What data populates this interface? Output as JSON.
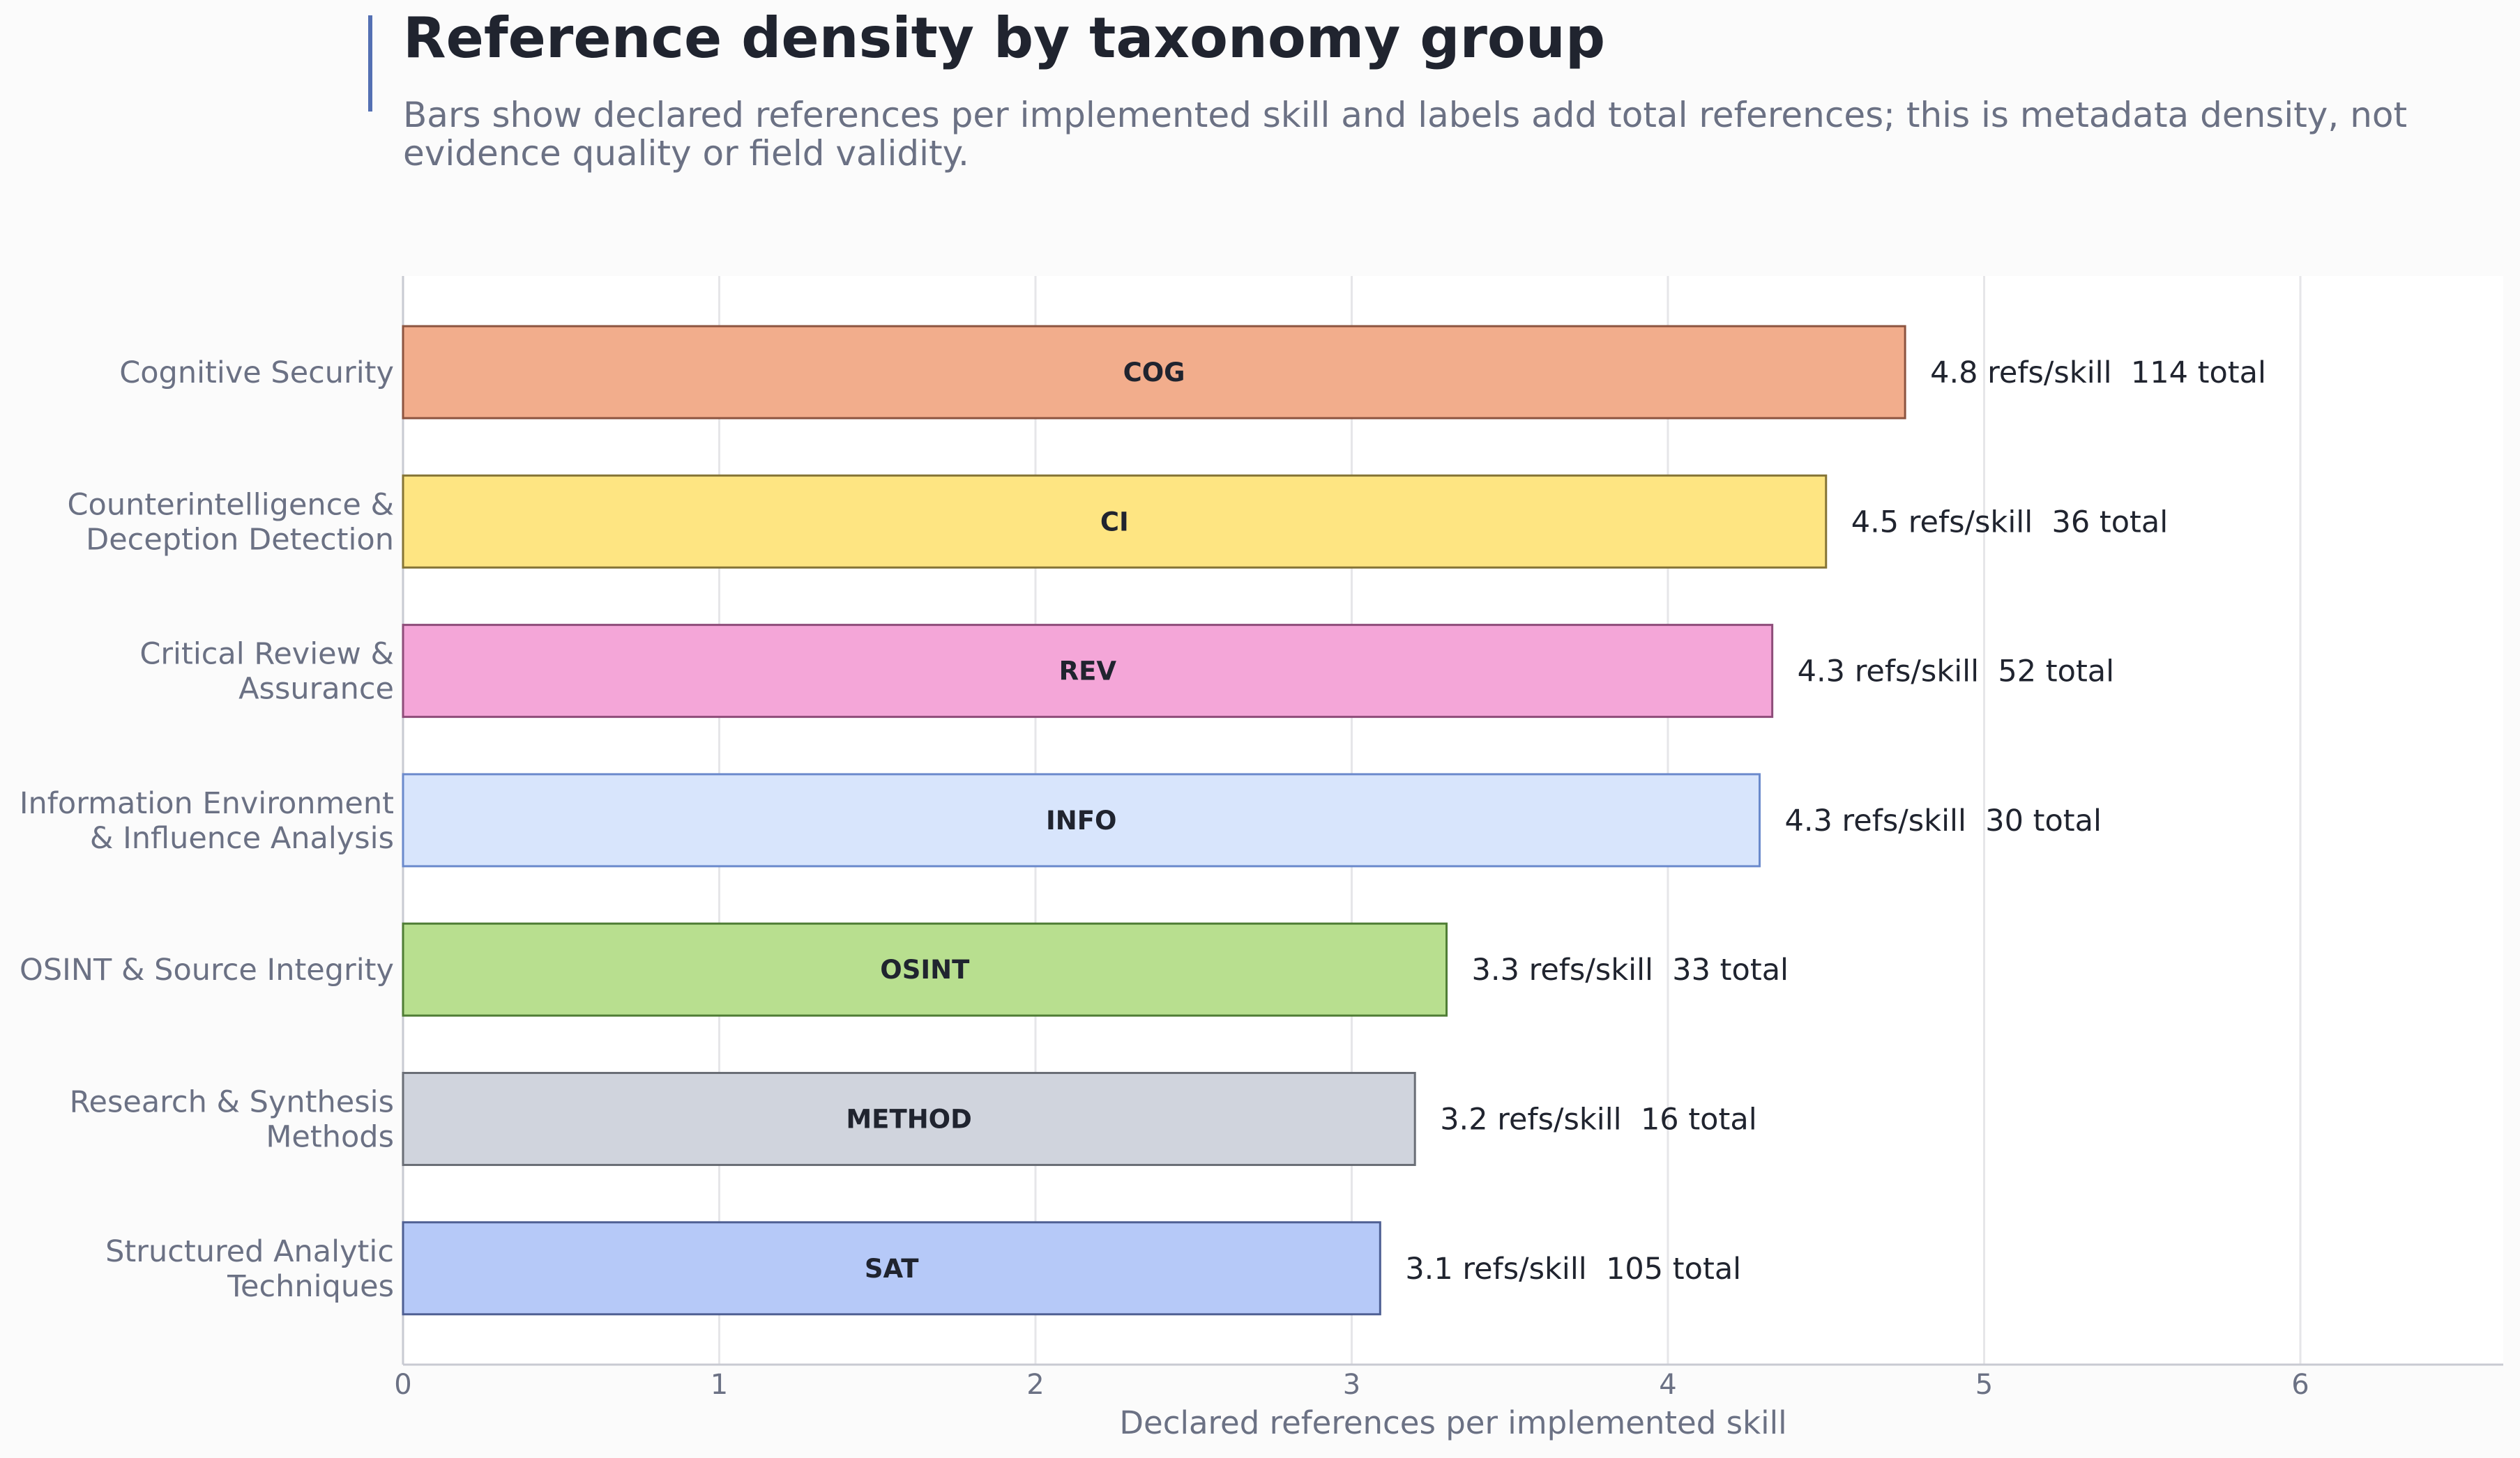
{
  "chart_data": {
    "type": "bar",
    "orientation": "horizontal",
    "title": "Reference density by taxonomy group",
    "subtitle": [
      "Bars show declared references per implemented skill and labels add total references; this is metadata density, not",
      "evidence quality or field validity."
    ],
    "xlabel": "Declared references per implemented skill",
    "ylabel": "",
    "xlim": [
      0,
      6.65
    ],
    "xticks": [
      0,
      1,
      2,
      3,
      4,
      5,
      6
    ],
    "grid": true,
    "unit_suffix": "refs/skill",
    "total_suffix": "total",
    "categories": [
      {
        "name": [
          "Cognitive Security"
        ],
        "code": "COG",
        "value": 4.75,
        "value_label": "4.8",
        "total": 114,
        "color": "#f2ad8c",
        "edge": "#8c5440"
      },
      {
        "name": [
          "Counterintelligence &",
          "Deception Detection"
        ],
        "code": "CI",
        "value": 4.5,
        "value_label": "4.5",
        "total": 36,
        "color": "#fee582",
        "edge": "#857436"
      },
      {
        "name": [
          "Critical Review &",
          "Assurance"
        ],
        "code": "REV",
        "value": 4.33,
        "value_label": "4.3",
        "total": 52,
        "color": "#f4a6d8",
        "edge": "#8e4d7a"
      },
      {
        "name": [
          "Information Environment",
          "& Influence Analysis"
        ],
        "code": "INFO",
        "value": 4.29,
        "value_label": "4.3",
        "total": 30,
        "color": "#d8e5fc",
        "edge": "#6b8acc"
      },
      {
        "name": [
          "OSINT & Source Integrity"
        ],
        "code": "OSINT",
        "value": 3.3,
        "value_label": "3.3",
        "total": 33,
        "color": "#b8df8f",
        "edge": "#4f7d35"
      },
      {
        "name": [
          "Research & Synthesis",
          "Methods"
        ],
        "code": "METHOD",
        "value": 3.2,
        "value_label": "3.2",
        "total": 16,
        "color": "#d0d4dd",
        "edge": "#6a6e76"
      },
      {
        "name": [
          "Structured Analytic",
          "Techniques"
        ],
        "code": "SAT",
        "value": 3.09,
        "value_label": "3.1",
        "total": 105,
        "color": "#b6c9f8",
        "edge": "#4e5f93"
      }
    ],
    "colors": {
      "accent_bar": "#5470b3",
      "grid": "#e6e6e9",
      "axis": "#c8cad2",
      "plot_bg": "#ffffff"
    }
  }
}
